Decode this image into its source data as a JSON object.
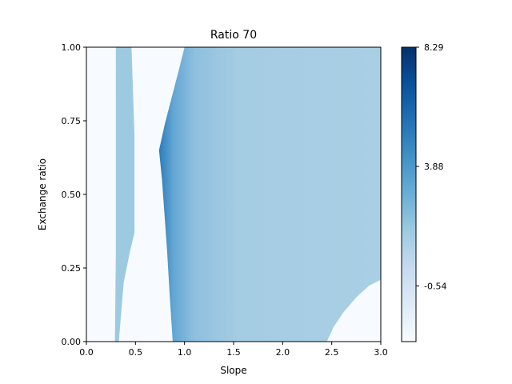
{
  "chart_data": {
    "type": "heatmap",
    "title": "Ratio 70",
    "xlabel": "Slope",
    "ylabel": "Exchange ratio",
    "xlim": [
      0.0,
      3.0
    ],
    "ylim": [
      0.0,
      1.0
    ],
    "grid": false,
    "x_ticks": [
      "0.0",
      "0.5",
      "1.0",
      "1.5",
      "2.0",
      "2.5",
      "3.0"
    ],
    "y_ticks": [
      "0.00",
      "0.25",
      "0.50",
      "0.75",
      "1.00"
    ],
    "colorbar": {
      "colormap": "Blues",
      "min": -2.6,
      "max": 8.29,
      "ticks": [
        "8.29",
        "3.88",
        "-0.54"
      ],
      "tick_values": [
        8.29,
        3.88,
        -0.54
      ]
    },
    "regions": [
      {
        "name": "narrow band",
        "value_approx": 2.0,
        "left_boundary": [
          [
            0.29,
            0.0
          ],
          [
            0.3,
            0.3
          ],
          [
            0.3,
            1.0
          ]
        ],
        "right_boundary": [
          [
            0.33,
            0.0
          ],
          [
            0.38,
            0.2
          ],
          [
            0.44,
            0.3
          ],
          [
            0.49,
            0.37
          ],
          [
            0.49,
            0.7
          ],
          [
            0.46,
            1.0
          ]
        ]
      },
      {
        "name": "main region",
        "value_approx": 2.2,
        "max_value_near": [
          0.88,
          0.0
        ],
        "left_boundary": [
          [
            0.88,
            0.0
          ],
          [
            0.85,
            0.15
          ],
          [
            0.82,
            0.32
          ],
          [
            0.77,
            0.55
          ],
          [
            0.74,
            0.65
          ],
          [
            0.8,
            0.74
          ],
          [
            0.87,
            0.83
          ],
          [
            0.94,
            0.92
          ],
          [
            1.0,
            1.0
          ]
        ],
        "lower_right_clear_boundary": [
          [
            2.45,
            0.0
          ],
          [
            2.52,
            0.05
          ],
          [
            2.62,
            0.1
          ],
          [
            2.75,
            0.15
          ],
          [
            2.88,
            0.19
          ],
          [
            3.0,
            0.21
          ]
        ]
      }
    ],
    "background_value_approx": -2.6
  },
  "colors": {
    "background_cell": "#f7fbff",
    "band": "#9ecae1",
    "main_light": "#a6cee4",
    "main_mid": "#8fc0de",
    "main_dark": "#2f7ebc",
    "cbar_top": "#08306b"
  }
}
